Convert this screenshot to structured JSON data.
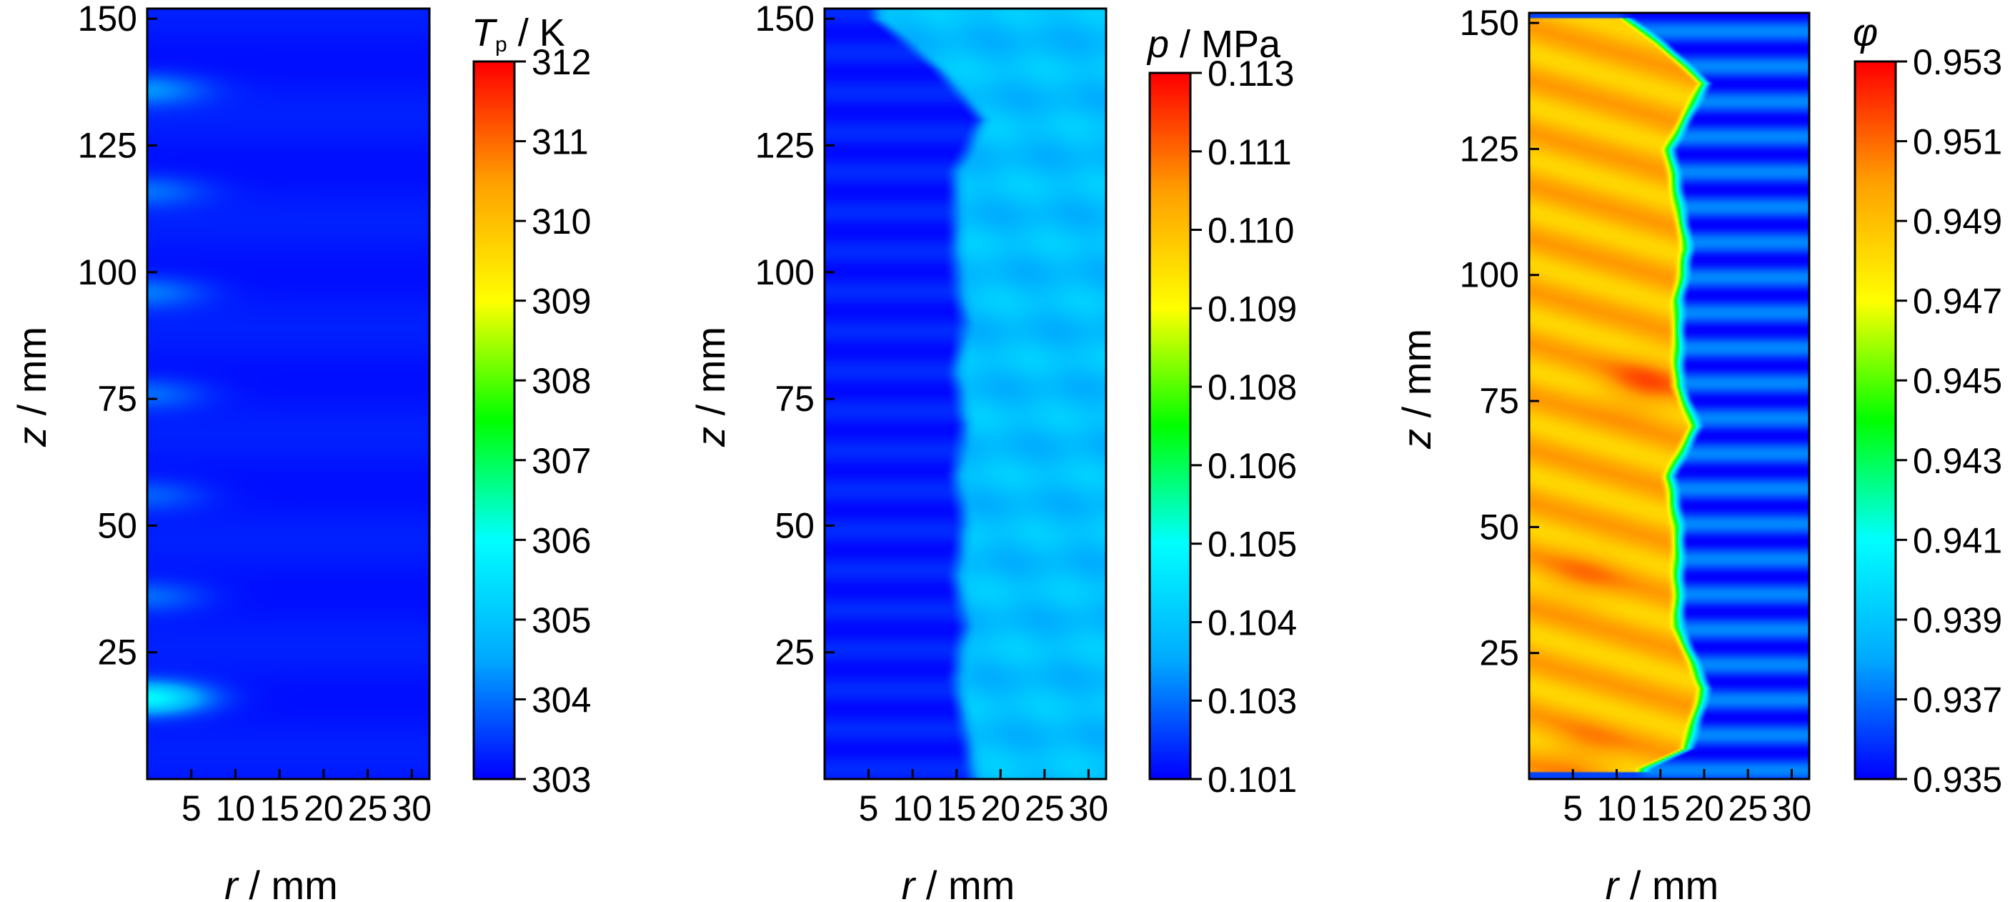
{
  "colormap": [
    "#0000ff",
    "#00aaff",
    "#00ffff",
    "#00ff00",
    "#ffff00",
    "#ffa000",
    "#ff0000"
  ],
  "chart_data": [
    {
      "type": "heatmap",
      "xlabel": "r / mm",
      "ylabel": "z / mm",
      "xticks": [
        "5",
        "10",
        "15",
        "20",
        "25",
        "30"
      ],
      "yticks": [
        "25",
        "50",
        "75",
        "100",
        "125",
        "150"
      ],
      "xlim": [
        0,
        32
      ],
      "ylim": [
        0,
        152
      ],
      "colorbar": {
        "title_main": "T",
        "title_sub": "p",
        "title_rest": " / K",
        "ticks": [
          "303",
          "304",
          "305",
          "306",
          "307",
          "308",
          "309",
          "310",
          "311",
          "312"
        ],
        "range": [
          303,
          312
        ]
      },
      "field": {
        "base": 303.2,
        "hotspots": [
          {
            "r": 0,
            "z": 16,
            "value": 306.0
          },
          {
            "r": 0,
            "z": 36,
            "value": 304.0
          },
          {
            "r": 0,
            "z": 56,
            "value": 303.9
          },
          {
            "r": 0,
            "z": 76,
            "value": 304.0
          },
          {
            "r": 0,
            "z": 96,
            "value": 304.1
          },
          {
            "r": 0,
            "z": 116,
            "value": 304.0
          },
          {
            "r": 0,
            "z": 136,
            "value": 304.3
          }
        ]
      }
    },
    {
      "type": "heatmap",
      "xlabel": "r / mm",
      "ylabel": "z / mm",
      "xticks": [
        "5",
        "10",
        "15",
        "20",
        "25",
        "30"
      ],
      "yticks": [
        "25",
        "50",
        "75",
        "100",
        "125",
        "150"
      ],
      "xlim": [
        0,
        32
      ],
      "ylim": [
        0,
        152
      ],
      "colorbar": {
        "title_main": "p",
        "title_sub": "",
        "title_rest": " / MPa",
        "ticks": [
          "0.101",
          "0.103",
          "0.104",
          "0.105",
          "0.106",
          "0.108",
          "0.109",
          "0.110",
          "0.111",
          "0.113"
        ],
        "range": [
          0.101,
          0.113
        ]
      },
      "field": {
        "inner": 0.1013,
        "outer": 0.1035,
        "boundary": [
          [
            0,
            17
          ],
          [
            10,
            16
          ],
          [
            20,
            15
          ],
          [
            30,
            16
          ],
          [
            40,
            15
          ],
          [
            50,
            16
          ],
          [
            60,
            15
          ],
          [
            70,
            16
          ],
          [
            80,
            15
          ],
          [
            90,
            16
          ],
          [
            100,
            15
          ],
          [
            110,
            15
          ],
          [
            120,
            15
          ],
          [
            130,
            18
          ],
          [
            140,
            13
          ],
          [
            150,
            6
          ]
        ]
      }
    },
    {
      "type": "heatmap",
      "xlabel": "r / mm",
      "ylabel": "z / mm",
      "xticks": [
        "5",
        "10",
        "15",
        "20",
        "25",
        "30"
      ],
      "yticks": [
        "25",
        "50",
        "75",
        "100",
        "125",
        "150"
      ],
      "xlim": [
        0,
        32
      ],
      "ylim": [
        0,
        152
      ],
      "colorbar": {
        "title_main": "φ",
        "title_sub": "",
        "title_rest": "",
        "ticks": [
          "0.935",
          "0.937",
          "0.939",
          "0.941",
          "0.943",
          "0.945",
          "0.947",
          "0.949",
          "0.951",
          "0.953"
        ],
        "range": [
          0.935,
          0.953
        ]
      },
      "field": {
        "inner": 0.9492,
        "outer": 0.9362,
        "top": 151,
        "boundary": [
          [
            2,
            13
          ],
          [
            6,
            18
          ],
          [
            18,
            20
          ],
          [
            30,
            17
          ],
          [
            40,
            17
          ],
          [
            50,
            17
          ],
          [
            60,
            16
          ],
          [
            70,
            19
          ],
          [
            78,
            17
          ],
          [
            85,
            17
          ],
          [
            95,
            17
          ],
          [
            105,
            18
          ],
          [
            115,
            17
          ],
          [
            125,
            16
          ],
          [
            138,
            20
          ],
          [
            146,
            15
          ],
          [
            151,
            11
          ]
        ],
        "hotspots": [
          {
            "r": 13,
            "z": 78,
            "value": 0.951
          },
          {
            "r": 6,
            "z": 5,
            "value": 0.9505
          },
          {
            "r": 6,
            "z": 40,
            "value": 0.9502
          }
        ]
      }
    }
  ]
}
